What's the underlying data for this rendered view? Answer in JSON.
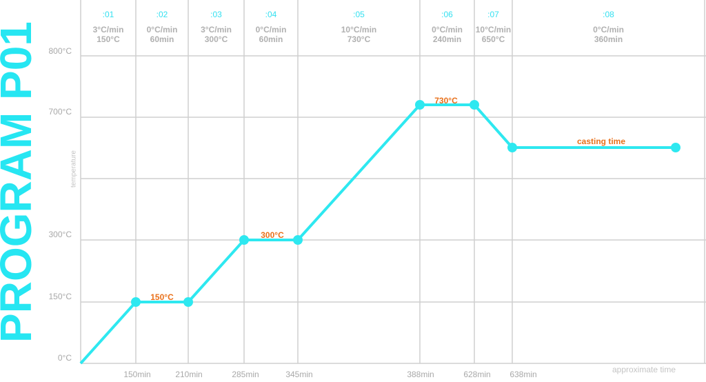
{
  "title": "PROGRAM P01",
  "y_axis_label": "temperature",
  "x_axis_label": "approximate time",
  "segments": [
    {
      "id": ":01",
      "rate": "3°C/min",
      "target": "150°C"
    },
    {
      "id": ":02",
      "rate": "0°C/min",
      "target": "60min"
    },
    {
      "id": ":03",
      "rate": "3°C/min",
      "target": "300°C"
    },
    {
      "id": ":04",
      "rate": "0°C/min",
      "target": "60min"
    },
    {
      "id": ":05",
      "rate": "10°C/min",
      "target": "730°C"
    },
    {
      "id": ":06",
      "rate": "0°C/min",
      "target": "240min"
    },
    {
      "id": ":07",
      "rate": "10°C/min",
      "target": "650°C"
    },
    {
      "id": ":08",
      "rate": "0°C/min",
      "target": "360min"
    }
  ],
  "y_labels": [
    "800°C",
    "700°C",
    "300°C",
    "150°C",
    "0°C"
  ],
  "x_labels": [
    "150min",
    "210min",
    "285min",
    "345min",
    "388min",
    "628min",
    "638min"
  ],
  "annotations": [
    "150°C",
    "300°C",
    "730°C",
    "casting time"
  ]
}
